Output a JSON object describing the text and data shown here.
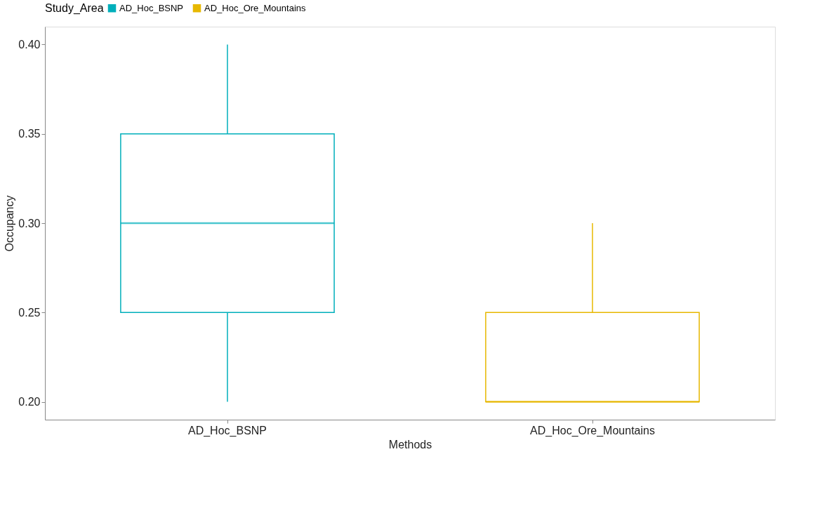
{
  "chart_data": {
    "type": "box",
    "xlabel": "Methods",
    "ylabel": "Occupancy",
    "legend_title": "Study_Area",
    "legend": "top",
    "categories": [
      "AD_Hoc_BSNP",
      "AD_Hoc_Ore_Mountains"
    ],
    "series": [
      {
        "name": "AD_Hoc_BSNP",
        "color": "#00afbb",
        "boxes": [
          {
            "low": 0.2,
            "q1": 0.25,
            "median": 0.3,
            "q3": 0.35,
            "high": 0.4
          },
          null
        ]
      },
      {
        "name": "AD_Hoc_Ore_Mountains",
        "color": "#e7b800",
        "boxes": [
          null,
          {
            "low": 0.2,
            "q1": 0.2,
            "median": 0.2,
            "q3": 0.25,
            "high": 0.3
          }
        ]
      }
    ],
    "ylim": [
      0.19,
      0.41
    ],
    "yticks": [
      {
        "value": 0.2,
        "label": "0.20"
      },
      {
        "value": 0.25,
        "label": "0.25"
      },
      {
        "value": 0.3,
        "label": "0.30"
      },
      {
        "value": 0.35,
        "label": "0.35"
      },
      {
        "value": 0.4,
        "label": "0.40"
      }
    ],
    "grid": false
  }
}
